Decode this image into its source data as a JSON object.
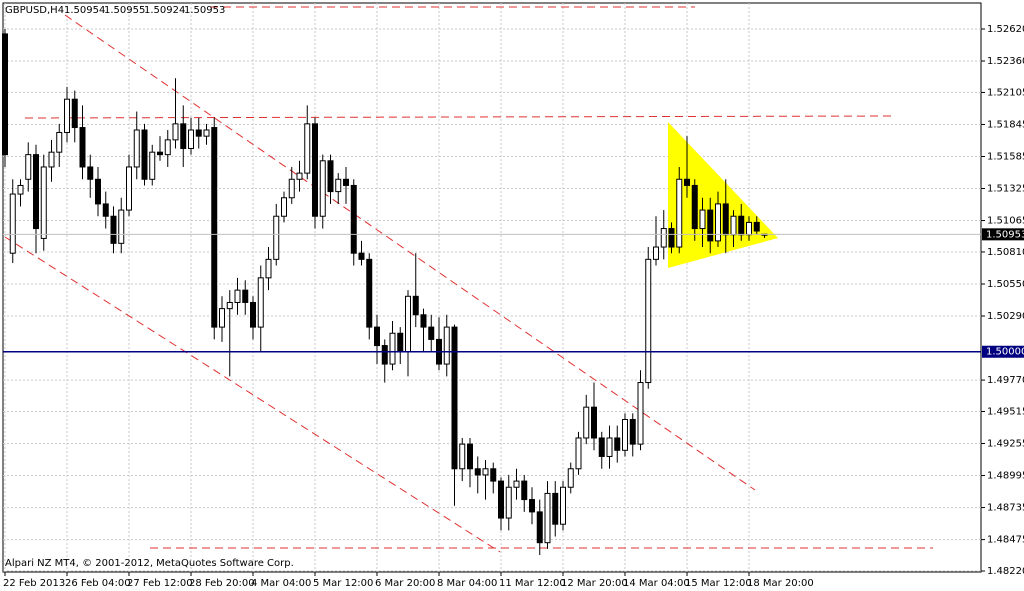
{
  "chart_data": {
    "type": "candlestick",
    "title": "GBPUSD,H4",
    "quote": [
      1.50954,
      1.50955,
      1.50924,
      1.50953
    ],
    "watermark": "Alpari NZ MT4, © 2001-2012, MetaQuotes Software Corp.",
    "bull_color": "#ffffff",
    "bear_color": "#000000",
    "grid": true,
    "ylim": [
      1.48212,
      1.52831
    ],
    "yticks": [
      {
        "value": 1.5262,
        "label": "1.52620"
      },
      {
        "value": 1.5236,
        "label": "1.52360"
      },
      1.52105,
      1.51845,
      1.51585,
      1.51325,
      1.51065,
      {
        "value": 1.5081,
        "label": "1.50810"
      },
      {
        "value": 1.5055,
        "label": "1.50550"
      },
      {
        "value": 1.5029,
        "label": "1.50290"
      },
      {
        "value": 1.4977,
        "label": "1.49770"
      },
      1.49515,
      1.49255,
      1.48995,
      1.48735,
      1.48475,
      {
        "value": 1.4822,
        "label": "1.48220"
      }
    ],
    "xticks": [
      {
        "value": 0,
        "label": "22 Feb 2013"
      },
      {
        "value": 8,
        "label": "26 Feb 04:00"
      },
      {
        "value": 16,
        "label": "27 Feb 12:00"
      },
      {
        "value": 24,
        "label": "28 Feb 20:00"
      },
      {
        "value": 32,
        "label": "4 Mar 04:00"
      },
      {
        "value": 40,
        "label": "5 Mar 12:00"
      },
      {
        "value": 48,
        "label": "6 Mar 20:00"
      },
      {
        "value": 56,
        "label": "8 Mar 04:00"
      },
      {
        "value": 64,
        "label": "11 Mar 12:00"
      },
      {
        "value": 72,
        "label": "12 Mar 20:00"
      },
      {
        "value": 80,
        "label": "14 Mar 04:00"
      },
      {
        "value": 88,
        "label": "15 Mar 12:00"
      },
      {
        "value": 96,
        "label": "18 Mar 20:00"
      }
    ],
    "price_lines": [
      {
        "value": 1.50953,
        "color": "#c0c0c0"
      },
      {
        "value": {
          "value": 1.5,
          "label": "1.50000"
        },
        "color": "#000080"
      }
    ],
    "open": [
      1.5258,
      1.508,
      1.5128,
      1.514,
      1.516,
      1.5092,
      1.515,
      1.5162,
      1.5178,
      1.5205,
      1.5182,
      1.515,
      1.514,
      1.512,
      1.511,
      1.5088,
      1.5115,
      1.515,
      1.518,
      1.514,
      1.5162,
      1.516,
      1.5172,
      1.5185,
      1.5165,
      1.518,
      1.5175,
      1.5182,
      1.502,
      1.5035,
      1.504,
      1.505,
      1.504,
      1.502,
      1.506,
      1.5075,
      1.511,
      1.5125,
      1.514,
      1.5145,
      1.5185,
      1.511,
      1.5155,
      1.513,
      1.514,
      1.5135,
      1.508,
      1.5075,
      1.502,
      1.5005,
      1.499,
      1.5015,
      1.5,
      1.5045,
      1.503,
      1.502,
      1.501,
      1.499,
      1.502,
      1.4905,
      1.4925,
      1.4905,
      1.49,
      1.4905,
      1.4895,
      1.4865,
      1.489,
      1.4895,
      1.488,
      1.487,
      1.4845,
      1.4885,
      1.486,
      1.489,
      1.4905,
      1.493,
      1.4955,
      1.493,
      1.4915,
      1.493,
      1.492,
      1.4945,
      1.4925,
      1.4975,
      1.5075,
      1.5085,
      1.51,
      1.5085,
      1.514,
      1.5135,
      1.51,
      1.5115,
      1.509,
      1.512,
      1.5095,
      1.511,
      1.5095,
      1.5105,
      1.50954
    ],
    "high": [
      1.5262,
      1.514,
      1.514,
      1.517,
      1.5168,
      1.516,
      1.5172,
      1.5185,
      1.5215,
      1.5212,
      1.52,
      1.516,
      1.515,
      1.513,
      1.5118,
      1.5125,
      1.516,
      1.5195,
      1.5185,
      1.5168,
      1.5175,
      1.518,
      1.5222,
      1.52,
      1.519,
      1.519,
      1.5185,
      1.519,
      1.5045,
      1.505,
      1.506,
      1.5058,
      1.5045,
      1.507,
      1.5085,
      1.512,
      1.513,
      1.515,
      1.5155,
      1.52,
      1.519,
      1.516,
      1.516,
      1.5145,
      1.515,
      1.514,
      1.509,
      1.508,
      1.503,
      1.501,
      1.5025,
      1.502,
      1.505,
      1.508,
      1.5035,
      1.503,
      1.5028,
      1.503,
      1.5022,
      1.493,
      1.493,
      1.4915,
      1.4912,
      1.491,
      1.4898,
      1.49,
      1.4905,
      1.49,
      1.489,
      1.488,
      1.4895,
      1.4895,
      1.4895,
      1.491,
      1.4935,
      1.4965,
      1.4975,
      1.4935,
      1.494,
      1.494,
      1.495,
      1.495,
      1.4985,
      1.5085,
      1.511,
      1.5115,
      1.5105,
      1.515,
      1.5175,
      1.514,
      1.5125,
      1.5125,
      1.513,
      1.514,
      1.5115,
      1.512,
      1.511,
      1.511,
      1.50955
    ],
    "low": [
      1.515,
      1.5072,
      1.5118,
      1.513,
      1.508,
      1.5082,
      1.5138,
      1.515,
      1.517,
      1.517,
      1.514,
      1.5125,
      1.511,
      1.51,
      1.508,
      1.508,
      1.511,
      1.514,
      1.5135,
      1.5135,
      1.5155,
      1.515,
      1.5165,
      1.515,
      1.516,
      1.5165,
      1.5168,
      1.501,
      1.5008,
      1.498,
      1.503,
      1.503,
      1.501,
      1.5,
      1.505,
      1.507,
      1.5105,
      1.512,
      1.513,
      1.514,
      1.51,
      1.51,
      1.512,
      1.512,
      1.512,
      1.507,
      1.507,
      1.501,
      1.499,
      1.4975,
      1.4985,
      1.499,
      1.498,
      1.502,
      1.5,
      1.5,
      1.4985,
      1.498,
      1.4875,
      1.4895,
      1.489,
      1.4885,
      1.488,
      1.4885,
      1.4855,
      1.4855,
      1.488,
      1.487,
      1.486,
      1.4835,
      1.484,
      1.485,
      1.4855,
      1.4885,
      1.49,
      1.4925,
      1.492,
      1.4905,
      1.4905,
      1.491,
      1.4915,
      1.4915,
      1.492,
      1.497,
      1.507,
      1.5075,
      1.508,
      1.508,
      1.5125,
      1.509,
      1.5085,
      1.508,
      1.5085,
      1.508,
      1.5085,
      1.509,
      1.509,
      1.5095,
      1.50924
    ],
    "close": [
      1.516,
      1.5128,
      1.5135,
      1.516,
      1.51,
      1.515,
      1.5162,
      1.5178,
      1.5205,
      1.5182,
      1.515,
      1.514,
      1.512,
      1.511,
      1.5088,
      1.5115,
      1.515,
      1.518,
      1.514,
      1.5162,
      1.516,
      1.5172,
      1.5185,
      1.5165,
      1.518,
      1.5175,
      1.518,
      1.502,
      1.5035,
      1.504,
      1.505,
      1.504,
      1.502,
      1.506,
      1.5075,
      1.511,
      1.5125,
      1.514,
      1.5145,
      1.5185,
      1.511,
      1.5155,
      1.513,
      1.514,
      1.5135,
      1.508,
      1.5075,
      1.502,
      1.5005,
      1.499,
      1.5015,
      1.5,
      1.5045,
      1.503,
      1.502,
      1.501,
      1.499,
      1.502,
      1.4905,
      1.4925,
      1.4905,
      1.49,
      1.4905,
      1.4895,
      1.4865,
      1.489,
      1.4895,
      1.488,
      1.487,
      1.4845,
      1.4885,
      1.486,
      1.489,
      1.4905,
      1.493,
      1.4955,
      1.493,
      1.4915,
      1.493,
      1.492,
      1.4945,
      1.4925,
      1.4975,
      1.5075,
      1.5085,
      1.51,
      1.5085,
      1.514,
      1.5135,
      1.51,
      1.5115,
      1.509,
      1.512,
      1.5095,
      1.511,
      1.5095,
      1.5105,
      1.5098,
      1.50953
    ]
  }
}
